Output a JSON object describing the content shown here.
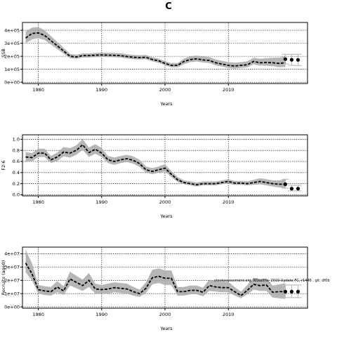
{
  "figure": {
    "title": "C",
    "footnote": "stockassessment.org, NSsaithe_2019 Update FC, r1446 , git: df0b"
  },
  "chart_data": [
    {
      "type": "line",
      "panel": "ssb",
      "title": "",
      "xlabel": "Years",
      "ylabel": "SSB",
      "xlim": [
        1977.5,
        2022.5
      ],
      "ylim": [
        -10000,
        460000
      ],
      "xticks": [
        1980,
        1990,
        2000,
        2010
      ],
      "xtick_labels": [
        "1980",
        "1990",
        "2000",
        "2010"
      ],
      "yticks": [
        0,
        100000,
        200000,
        300000,
        400000
      ],
      "ytick_labels": [
        "0e+00",
        "1e+05",
        "2e+05",
        "3e+05",
        "4e+05"
      ],
      "grid": true,
      "x": [
        1978,
        1979,
        1980,
        1981,
        1982,
        1983,
        1984,
        1985,
        1986,
        1987,
        1988,
        1989,
        1990,
        1991,
        1992,
        1993,
        1994,
        1995,
        1996,
        1997,
        1998,
        1999,
        2000,
        2001,
        2002,
        2003,
        2004,
        2005,
        2006,
        2007,
        2008,
        2009,
        2010,
        2011,
        2012,
        2013,
        2014,
        2015,
        2016,
        2017,
        2018,
        2019
      ],
      "series": [
        {
          "role": "estimate",
          "values": [
            340000,
            375000,
            380000,
            360000,
            320000,
            280000,
            240000,
            200000,
            195000,
            205000,
            205000,
            208000,
            210000,
            208000,
            207000,
            205000,
            198000,
            192000,
            190000,
            192000,
            175000,
            165000,
            145000,
            130000,
            130000,
            160000,
            175000,
            180000,
            172000,
            168000,
            150000,
            140000,
            130000,
            125000,
            130000,
            135000,
            160000,
            150000,
            152000,
            150000,
            145000,
            150000
          ]
        },
        {
          "role": "ci_low",
          "values": [
            300000,
            330000,
            340000,
            325000,
            290000,
            255000,
            220000,
            185000,
            180000,
            190000,
            190000,
            193000,
            195000,
            193000,
            192000,
            190000,
            183000,
            177000,
            175000,
            177000,
            160000,
            150000,
            130000,
            115000,
            115000,
            140000,
            155000,
            160000,
            152000,
            148000,
            130000,
            120000,
            110000,
            105000,
            110000,
            115000,
            138000,
            128000,
            128000,
            124000,
            116000,
            118000
          ]
        },
        {
          "role": "ci_high",
          "values": [
            390000,
            420000,
            425000,
            400000,
            355000,
            310000,
            265000,
            218000,
            212000,
            222000,
            222000,
            225000,
            228000,
            226000,
            225000,
            223000,
            216000,
            210000,
            208000,
            210000,
            192000,
            182000,
            162000,
            147000,
            148000,
            182000,
            200000,
            205000,
            198000,
            194000,
            175000,
            165000,
            155000,
            150000,
            155000,
            162000,
            188000,
            180000,
            185000,
            188000,
            190000,
            198000
          ]
        }
      ],
      "forecast": {
        "x": [
          2019,
          2020,
          2021
        ],
        "values": [
          178000,
          173000,
          172000
        ],
        "low": [
          140000,
          130000,
          128000
        ],
        "high": [
          215000,
          215000,
          215000
        ]
      }
    },
    {
      "type": "line",
      "panel": "fbar",
      "title": "",
      "xlabel": "Years",
      "ylabel": "F2-6",
      "xlim": [
        1977.5,
        2022.5
      ],
      "ylim": [
        -0.02,
        1.08
      ],
      "xticks": [
        1980,
        1990,
        2000,
        2010
      ],
      "xtick_labels": [
        "1980",
        "1990",
        "2000",
        "2010"
      ],
      "yticks": [
        0,
        0.2,
        0.4,
        0.6,
        0.8,
        1.0
      ],
      "ytick_labels": [
        "0.0",
        "0.2",
        "0.4",
        "0.6",
        "0.8",
        "1.0"
      ],
      "grid": true,
      "x": [
        1978,
        1979,
        1980,
        1981,
        1982,
        1983,
        1984,
        1985,
        1986,
        1987,
        1988,
        1989,
        1990,
        1991,
        1992,
        1993,
        1994,
        1995,
        1996,
        1997,
        1998,
        1999,
        2000,
        2001,
        2002,
        2003,
        2004,
        2005,
        2006,
        2007,
        2008,
        2009,
        2010,
        2011,
        2012,
        2013,
        2014,
        2015,
        2016,
        2017,
        2018,
        2019
      ],
      "series": [
        {
          "role": "estimate",
          "values": [
            0.68,
            0.67,
            0.75,
            0.75,
            0.63,
            0.68,
            0.77,
            0.75,
            0.8,
            0.9,
            0.76,
            0.82,
            0.75,
            0.63,
            0.6,
            0.63,
            0.65,
            0.62,
            0.56,
            0.45,
            0.42,
            0.45,
            0.48,
            0.37,
            0.27,
            0.22,
            0.2,
            0.18,
            0.2,
            0.2,
            0.2,
            0.22,
            0.24,
            0.21,
            0.21,
            0.2,
            0.22,
            0.24,
            0.22,
            0.2,
            0.19,
            0.19
          ]
        },
        {
          "role": "ci_low",
          "values": [
            0.6,
            0.6,
            0.68,
            0.68,
            0.57,
            0.61,
            0.69,
            0.67,
            0.72,
            0.81,
            0.68,
            0.74,
            0.68,
            0.57,
            0.54,
            0.57,
            0.59,
            0.56,
            0.5,
            0.4,
            0.37,
            0.4,
            0.42,
            0.32,
            0.23,
            0.19,
            0.17,
            0.15,
            0.17,
            0.17,
            0.17,
            0.19,
            0.2,
            0.18,
            0.18,
            0.17,
            0.18,
            0.19,
            0.17,
            0.15,
            0.13,
            0.12
          ]
        },
        {
          "role": "ci_high",
          "values": [
            0.77,
            0.75,
            0.83,
            0.83,
            0.7,
            0.76,
            0.86,
            0.84,
            0.89,
            1.0,
            0.85,
            0.91,
            0.84,
            0.7,
            0.67,
            0.7,
            0.72,
            0.69,
            0.63,
            0.51,
            0.48,
            0.51,
            0.55,
            0.43,
            0.32,
            0.26,
            0.24,
            0.22,
            0.24,
            0.24,
            0.24,
            0.26,
            0.28,
            0.25,
            0.25,
            0.24,
            0.27,
            0.3,
            0.28,
            0.26,
            0.26,
            0.28
          ]
        }
      ],
      "forecast": {
        "x": [
          2019,
          2020,
          2021
        ],
        "values": [
          0.19,
          0.11,
          0.11
        ],
        "low": [
          0.12,
          0.07,
          0.07
        ],
        "high": [
          0.28,
          0.17,
          0.17
        ]
      }
    },
    {
      "type": "line",
      "panel": "recruits",
      "title": "",
      "xlabel": "Years",
      "ylabel": "Recruits (age0)",
      "xlim": [
        1977.5,
        2022.5
      ],
      "ylim": [
        -1000000,
        45000000
      ],
      "xticks": [
        1980,
        1990,
        2000,
        2010
      ],
      "xtick_labels": [
        "1980",
        "1990",
        "2000",
        "2010"
      ],
      "yticks": [
        0,
        10000000,
        20000000,
        30000000,
        40000000
      ],
      "ytick_labels": [
        "0e+00",
        "1e+07",
        "2e+07",
        "3e+07",
        "4e+07"
      ],
      "grid": true,
      "x": [
        1978,
        1979,
        1980,
        1981,
        1982,
        1983,
        1984,
        1985,
        1986,
        1987,
        1988,
        1989,
        1990,
        1991,
        1992,
        1993,
        1994,
        1995,
        1996,
        1997,
        1998,
        1999,
        2000,
        2001,
        2002,
        2003,
        2004,
        2005,
        2006,
        2007,
        2008,
        2009,
        2010,
        2011,
        2012,
        2013,
        2014,
        2015,
        2016,
        2017,
        2018,
        2019
      ],
      "series": [
        {
          "role": "estimate",
          "values": [
            33000000,
            25000000,
            13000000,
            12000000,
            11500000,
            15000000,
            12000000,
            21000000,
            18500000,
            16000000,
            20000000,
            13500000,
            13000000,
            13500000,
            14500000,
            14000000,
            13500000,
            11500000,
            10000000,
            14000000,
            22000000,
            23000000,
            21500000,
            21500000,
            11500000,
            11500000,
            12500000,
            12500000,
            11000000,
            16000000,
            15000000,
            14500000,
            14500000,
            11500000,
            8500000,
            12500000,
            17000000,
            16000000,
            16500000,
            11000000,
            11500000,
            11500000
          ]
        },
        {
          "role": "ci_low",
          "values": [
            26000000,
            20000000,
            10000000,
            9000000,
            8500000,
            11000000,
            9000000,
            16000000,
            14000000,
            12000000,
            15000000,
            10000000,
            10000000,
            10000000,
            11000000,
            10500000,
            10000000,
            8500000,
            7500000,
            10500000,
            17000000,
            18000000,
            16500000,
            16500000,
            8500000,
            8500000,
            9500000,
            9500000,
            8000000,
            12000000,
            11500000,
            11000000,
            11000000,
            8500000,
            6500000,
            9500000,
            13000000,
            12000000,
            12000000,
            7000000,
            6500000,
            6000000
          ]
        },
        {
          "role": "ci_high",
          "values": [
            43000000,
            33000000,
            16500000,
            15500000,
            15000000,
            19500000,
            15500000,
            26500000,
            23500000,
            20500000,
            25500000,
            17500000,
            16500000,
            17500000,
            18500000,
            18000000,
            17500000,
            15000000,
            13000000,
            18500000,
            28000000,
            29000000,
            27500000,
            27500000,
            15000000,
            15000000,
            16000000,
            16000000,
            14500000,
            20500000,
            19500000,
            19000000,
            19000000,
            15000000,
            11500000,
            16500000,
            22000000,
            21000000,
            21500000,
            16000000,
            17000000,
            18000000
          ]
        }
      ],
      "forecast": {
        "x": [
          2019,
          2020,
          2021
        ],
        "values": [
          11500000,
          11500000,
          11500000
        ],
        "low": [
          7000000,
          7000000,
          7000000
        ],
        "high": [
          16500000,
          16500000,
          16500000
        ]
      }
    }
  ]
}
